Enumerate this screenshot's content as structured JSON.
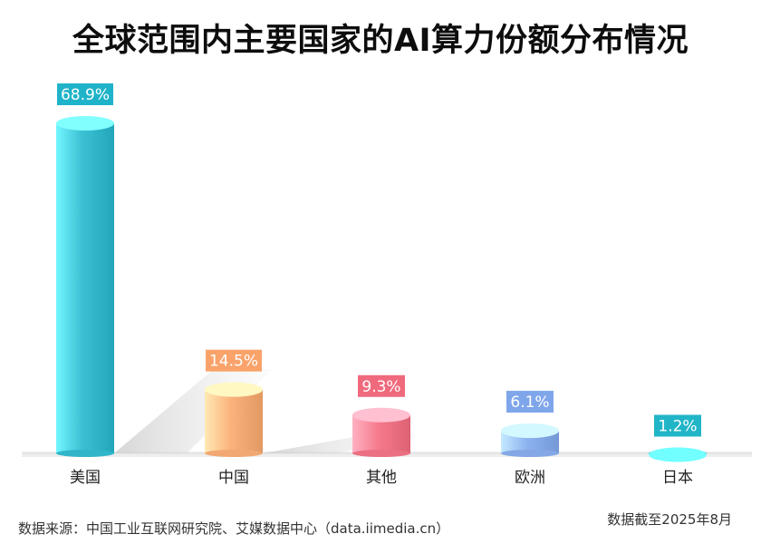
{
  "title": "全球范围内主要国家的AI算力份额分布情况",
  "source": "数据来源：中国工业互联网研究院、艾媒数据中心（data.iimedia.cn）",
  "as_of": "数据截至2025年8月",
  "chart_data": {
    "type": "bar",
    "title": "全球范围内主要国家的AI算力份额分布情况",
    "categories": [
      "美国",
      "中国",
      "其他",
      "欧洲",
      "日本"
    ],
    "values": [
      68.9,
      14.5,
      9.3,
      6.1,
      1.2
    ],
    "value_labels": [
      "68.9%",
      "14.5%",
      "9.3%",
      "6.1%",
      "1.2%"
    ],
    "unit": "%",
    "ylim": [
      0,
      70
    ],
    "grid": false,
    "legend": "none",
    "colors": [
      "#3bbfd3",
      "#fbb27c",
      "#f57a8c",
      "#8db2ef",
      "#2cbdd0"
    ],
    "label_colors": [
      "#1fb3c9",
      "#f9a36b",
      "#f06a7d",
      "#7fa6ea",
      "#21b5c8"
    ]
  }
}
